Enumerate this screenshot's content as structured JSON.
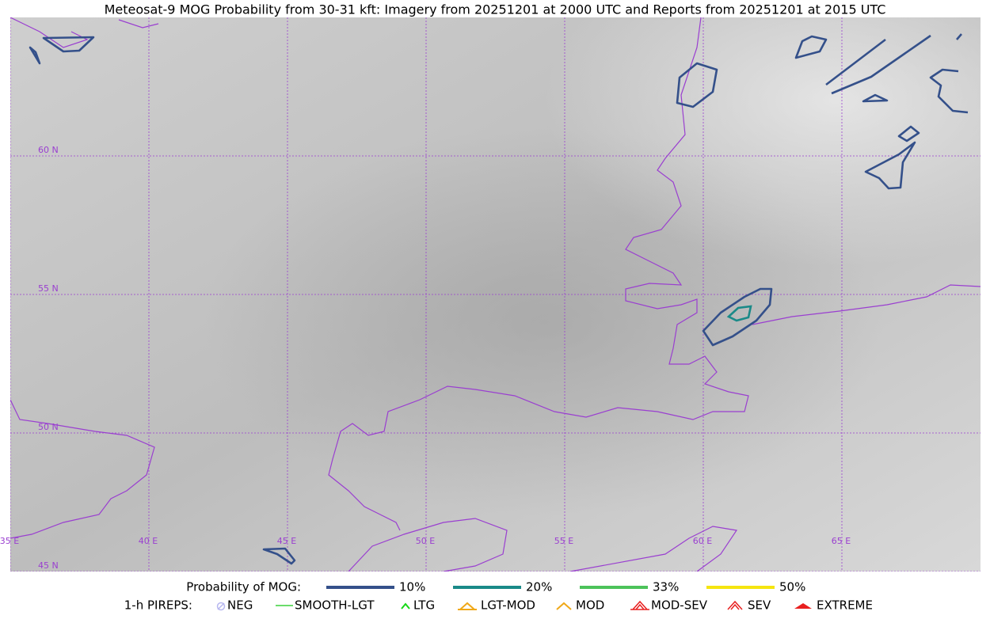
{
  "title": "Meteosat-9 MOG Probability from 30-31 kft: Imagery from 20251201 at 2000 UTC and Reports from 20251201 at 2015 UTC",
  "map": {
    "lat_labels": [
      "60 N",
      "55 N",
      "50 N",
      "45 N"
    ],
    "lon_labels": [
      "35 E",
      "40 E",
      "45 E",
      "50 E",
      "55 E",
      "60 E",
      "65 E"
    ]
  },
  "legend": {
    "probability": {
      "title": "Probability of MOG:",
      "items": [
        {
          "label": "10%",
          "color": "#34508a"
        },
        {
          "label": "20%",
          "color": "#1a8a88"
        },
        {
          "label": "33%",
          "color": "#4cc35a"
        },
        {
          "label": "50%",
          "color": "#f5e50f"
        }
      ]
    },
    "pireps": {
      "title": "1-h PIREPS:",
      "items": [
        {
          "label": "NEG",
          "color": "#b8b8f0"
        },
        {
          "label": "SMOOTH-LGT",
          "color": "#3ad13a"
        },
        {
          "label": "LTG",
          "color": "#17d817"
        },
        {
          "label": "LGT-MOD",
          "color": "#f0a818"
        },
        {
          "label": "MOD",
          "color": "#f0a818"
        },
        {
          "label": "MOD-SEV",
          "color": "#e82020"
        },
        {
          "label": "SEV",
          "color": "#e82020"
        },
        {
          "label": "EXTREME",
          "color": "#e82020"
        }
      ]
    }
  }
}
